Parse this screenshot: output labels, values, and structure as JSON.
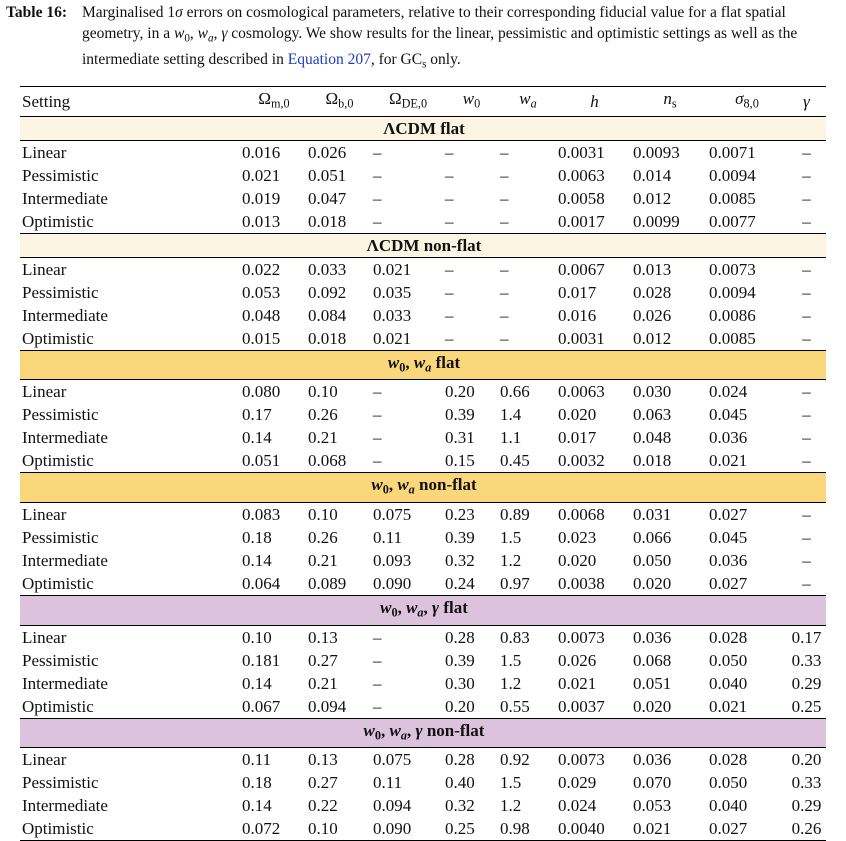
{
  "caption": {
    "label": "Table 16:",
    "segments": [
      {
        "text": "Marginalised 1"
      },
      {
        "text": "σ",
        "style": "italic"
      },
      {
        "text": " errors on cosmological parameters, relative to their corresponding fiducial value for a flat spatial geometry, in a "
      },
      {
        "text": "w",
        "style": "italic"
      },
      {
        "text": "0",
        "style": "sub"
      },
      {
        "text": ", "
      },
      {
        "text": "w",
        "style": "italic"
      },
      {
        "text": "a",
        "style": "sub-italic"
      },
      {
        "text": ", "
      },
      {
        "text": "γ",
        "style": "italic"
      },
      {
        "text": " cosmology. We show results for the linear, pessimistic and optimistic settings as well as the intermediate setting described in "
      },
      {
        "text": "Equation 207",
        "style": "link"
      },
      {
        "text": ", for GC"
      },
      {
        "text": "s",
        "style": "sub"
      },
      {
        "text": " only."
      }
    ]
  },
  "table": {
    "header": [
      [
        {
          "text": "Setting"
        }
      ],
      [
        {
          "text": "Ω"
        },
        {
          "text": "m,0",
          "style": "sub"
        }
      ],
      [
        {
          "text": "Ω"
        },
        {
          "text": "b,0",
          "style": "sub"
        }
      ],
      [
        {
          "text": "Ω"
        },
        {
          "text": "DE,0",
          "style": "sub"
        }
      ],
      [
        {
          "text": "w",
          "style": "italic"
        },
        {
          "text": "0",
          "style": "sub"
        }
      ],
      [
        {
          "text": "w",
          "style": "italic"
        },
        {
          "text": "a",
          "style": "sub-italic"
        }
      ],
      [
        {
          "text": "h",
          "style": "italic"
        }
      ],
      [
        {
          "text": "n",
          "style": "italic"
        },
        {
          "text": "s",
          "style": "sub"
        }
      ],
      [
        {
          "text": "σ",
          "style": "italic"
        },
        {
          "text": "8,0",
          "style": "sub"
        }
      ],
      [
        {
          "text": "γ",
          "style": "italic"
        }
      ]
    ],
    "sections": [
      {
        "color": "#fdf5e4",
        "title": [
          {
            "text": "ΛCDM flat"
          }
        ],
        "rows": [
          [
            "Linear",
            "0.016",
            "0.026",
            "–",
            "–",
            "–",
            "0.0031",
            "0.0093",
            "0.0071",
            "–"
          ],
          [
            "Pessimistic",
            "0.021",
            "0.051",
            "–",
            "–",
            "–",
            "0.0063",
            "0.014",
            "0.0094",
            "–"
          ],
          [
            "Intermediate",
            "0.019",
            "0.047",
            "–",
            "–",
            "–",
            "0.0058",
            "0.012",
            "0.0085",
            "–"
          ],
          [
            "Optimistic",
            "0.013",
            "0.018",
            "–",
            "–",
            "–",
            "0.0017",
            "0.0099",
            "0.0077",
            "–"
          ]
        ]
      },
      {
        "color": "#fdf5e4",
        "title": [
          {
            "text": "ΛCDM non-flat"
          }
        ],
        "rows": [
          [
            "Linear",
            "0.022",
            "0.033",
            "0.021",
            "–",
            "–",
            "0.0067",
            "0.013",
            "0.0073",
            "–"
          ],
          [
            "Pessimistic",
            "0.053",
            "0.092",
            "0.035",
            "–",
            "–",
            "0.017",
            "0.028",
            "0.0094",
            "–"
          ],
          [
            "Intermediate",
            "0.048",
            "0.084",
            "0.033",
            "–",
            "–",
            "0.016",
            "0.026",
            "0.0086",
            "–"
          ],
          [
            "Optimistic",
            "0.015",
            "0.018",
            "0.021",
            "–",
            "–",
            "0.0031",
            "0.012",
            "0.0085",
            "–"
          ]
        ]
      },
      {
        "color": "#fbd77b",
        "title": [
          {
            "text": "w",
            "style": "italic"
          },
          {
            "text": "0",
            "style": "sub"
          },
          {
            "text": ", "
          },
          {
            "text": "w",
            "style": "italic"
          },
          {
            "text": "a",
            "style": "sub-italic"
          },
          {
            "text": " flat"
          }
        ],
        "rows": [
          [
            "Linear",
            "0.080",
            "0.10",
            "–",
            "0.20",
            "0.66",
            "0.0063",
            "0.030",
            "0.024",
            "–"
          ],
          [
            "Pessimistic",
            "0.17",
            "0.26",
            "–",
            "0.39",
            "1.4",
            "0.020",
            "0.063",
            "0.045",
            "–"
          ],
          [
            "Intermediate",
            "0.14",
            "0.21",
            "–",
            "0.31",
            "1.1",
            "0.017",
            "0.048",
            "0.036",
            "–"
          ],
          [
            "Optimistic",
            "0.051",
            "0.068",
            "–",
            "0.15",
            "0.45",
            "0.0032",
            "0.018",
            "0.021",
            "–"
          ]
        ]
      },
      {
        "color": "#fbd77b",
        "title": [
          {
            "text": "w",
            "style": "italic"
          },
          {
            "text": "0",
            "style": "sub"
          },
          {
            "text": ", "
          },
          {
            "text": "w",
            "style": "italic"
          },
          {
            "text": "a",
            "style": "sub-italic"
          },
          {
            "text": " non-flat"
          }
        ],
        "rows": [
          [
            "Linear",
            "0.083",
            "0.10",
            "0.075",
            "0.23",
            "0.89",
            "0.0068",
            "0.031",
            "0.027",
            "–"
          ],
          [
            "Pessimistic",
            "0.18",
            "0.26",
            "0.11",
            "0.39",
            "1.5",
            "0.023",
            "0.066",
            "0.045",
            "–"
          ],
          [
            "Intermediate",
            "0.14",
            "0.21",
            "0.093",
            "0.32",
            "1.2",
            "0.020",
            "0.050",
            "0.036",
            "–"
          ],
          [
            "Optimistic",
            "0.064",
            "0.089",
            "0.090",
            "0.24",
            "0.97",
            "0.0038",
            "0.020",
            "0.027",
            "–"
          ]
        ]
      },
      {
        "color": "#dcc2dd",
        "title": [
          {
            "text": "w",
            "style": "italic"
          },
          {
            "text": "0",
            "style": "sub"
          },
          {
            "text": ", "
          },
          {
            "text": "w",
            "style": "italic"
          },
          {
            "text": "a",
            "style": "sub-italic"
          },
          {
            "text": ", "
          },
          {
            "text": "γ",
            "style": "italic"
          },
          {
            "text": " flat"
          }
        ],
        "rows": [
          [
            "Linear",
            "0.10",
            "0.13",
            "–",
            "0.28",
            "0.83",
            "0.0073",
            "0.036",
            "0.028",
            "0.17"
          ],
          [
            "Pessimistic",
            "0.181",
            "0.27",
            "–",
            "0.39",
            "1.5",
            "0.026",
            "0.068",
            "0.050",
            "0.33"
          ],
          [
            "Intermediate",
            "0.14",
            "0.21",
            "–",
            "0.30",
            "1.2",
            "0.021",
            "0.051",
            "0.040",
            "0.29"
          ],
          [
            "Optimistic",
            "0.067",
            "0.094",
            "–",
            "0.20",
            "0.55",
            "0.0037",
            "0.020",
            "0.021",
            "0.25"
          ]
        ]
      },
      {
        "color": "#dcc2dd",
        "title": [
          {
            "text": "w",
            "style": "italic"
          },
          {
            "text": "0",
            "style": "sub"
          },
          {
            "text": ", "
          },
          {
            "text": "w",
            "style": "italic"
          },
          {
            "text": "a",
            "style": "sub-italic"
          },
          {
            "text": ", "
          },
          {
            "text": "γ",
            "style": "italic"
          },
          {
            "text": " non-flat"
          }
        ],
        "rows": [
          [
            "Linear",
            "0.11",
            "0.13",
            "0.075",
            "0.28",
            "0.92",
            "0.0073",
            "0.036",
            "0.028",
            "0.20"
          ],
          [
            "Pessimistic",
            "0.18",
            "0.27",
            "0.11",
            "0.40",
            "1.5",
            "0.029",
            "0.070",
            "0.050",
            "0.33"
          ],
          [
            "Intermediate",
            "0.14",
            "0.22",
            "0.094",
            "0.32",
            "1.2",
            "0.024",
            "0.053",
            "0.040",
            "0.29"
          ],
          [
            "Optimistic",
            "0.072",
            "0.10",
            "0.090",
            "0.25",
            "0.98",
            "0.0040",
            "0.021",
            "0.027",
            "0.26"
          ]
        ]
      }
    ]
  }
}
